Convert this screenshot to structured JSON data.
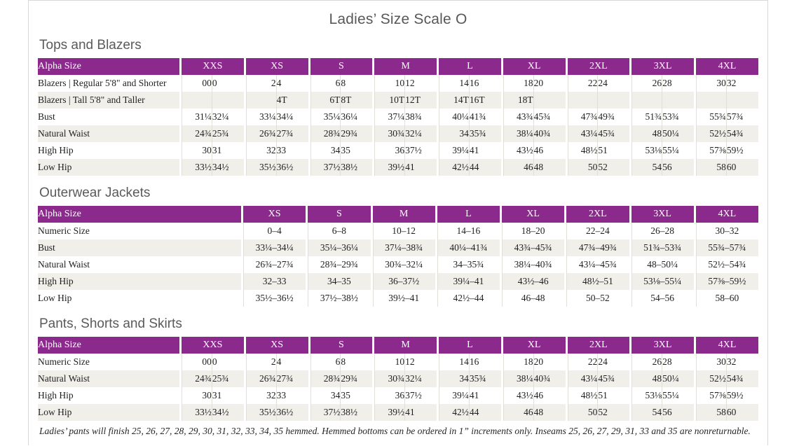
{
  "page": {
    "title": "Ladies’ Size Scale O",
    "footnote": "Ladies’ pants will finish 25, 26, 27, 28, 29, 30, 31, 32, 33, 34, 35 hemmed. Hemmed bottoms can be ordered in 1” increments only. Inseams 25, 26, 27, 29, 31, 33 and 35 are nonreturnable."
  },
  "colors": {
    "header_purple": "#8b2a8c",
    "row_stripe": "#f1efe9",
    "grid_line": "#e2dfd8",
    "heading_gray": "#5a5a5a",
    "page_border": "#d8d8d8"
  },
  "sections": [
    {
      "heading": "Tops and Blazers",
      "table": {
        "label_header": "Alpha Size",
        "group_headers": [
          "XXS",
          "XS",
          "S",
          "M",
          "L",
          "XL",
          "2XL",
          "3XL",
          "4XL"
        ],
        "cell_mode": "pairs",
        "label_col_width": 202,
        "rows": [
          {
            "label": "Blazers | Regular 5'8\" and Shorter",
            "cells": [
              [
                "00",
                "0"
              ],
              [
                "2",
                "4"
              ],
              [
                "6",
                "8"
              ],
              [
                "10",
                "12"
              ],
              [
                "14",
                "16"
              ],
              [
                "18",
                "20"
              ],
              [
                "22",
                "24"
              ],
              [
                "26",
                "28"
              ],
              [
                "30",
                "32"
              ]
            ]
          },
          {
            "label": "Blazers | Tall 5'8\" and Taller",
            "cells": [
              [
                "",
                ""
              ],
              [
                "",
                "4T"
              ],
              [
                "6T",
                "8T"
              ],
              [
                "10T",
                "12T"
              ],
              [
                "14T",
                "16T"
              ],
              [
                "18T",
                ""
              ],
              [
                "",
                ""
              ],
              [
                "",
                ""
              ],
              [
                "",
                ""
              ]
            ]
          },
          {
            "label": "Bust",
            "cells": [
              [
                "31¼",
                "32¼"
              ],
              [
                "33¼",
                "34¼"
              ],
              [
                "35¼",
                "36¼"
              ],
              [
                "37¼",
                "38¾"
              ],
              [
                "40¼",
                "41¾"
              ],
              [
                "43¾",
                "45¾"
              ],
              [
                "47¾",
                "49¾"
              ],
              [
                "51¾",
                "53¾"
              ],
              [
                "55¾",
                "57¾"
              ]
            ]
          },
          {
            "label": "Natural Waist",
            "cells": [
              [
                "24¾",
                "25¾"
              ],
              [
                "26¾",
                "27¾"
              ],
              [
                "28¾",
                "29¾"
              ],
              [
                "30¾",
                "32¼"
              ],
              [
                "34",
                "35¾"
              ],
              [
                "38¼",
                "40¾"
              ],
              [
                "43¼",
                "45¾"
              ],
              [
                "48",
                "50¼"
              ],
              [
                "52½",
                "54¾"
              ]
            ]
          },
          {
            "label": "High Hip",
            "cells": [
              [
                "30",
                "31"
              ],
              [
                "32",
                "33"
              ],
              [
                "34",
                "35"
              ],
              [
                "36",
                "37½"
              ],
              [
                "39¼",
                "41"
              ],
              [
                "43½",
                "46"
              ],
              [
                "48½",
                "51"
              ],
              [
                "53⅛",
                "55¼"
              ],
              [
                "57⅜",
                "59½"
              ]
            ]
          },
          {
            "label": "Low Hip",
            "cells": [
              [
                "33½",
                "34½"
              ],
              [
                "35½",
                "36½"
              ],
              [
                "37½",
                "38½"
              ],
              [
                "39½",
                "41"
              ],
              [
                "42½",
                "44"
              ],
              [
                "46",
                "48"
              ],
              [
                "50",
                "52"
              ],
              [
                "54",
                "56"
              ],
              [
                "58",
                "60"
              ]
            ]
          }
        ]
      }
    },
    {
      "heading": "Outerwear Jackets",
      "table": {
        "label_header": "Alpha Size",
        "group_headers": [
          "XS",
          "S",
          "M",
          "L",
          "XL",
          "2XL",
          "3XL",
          "4XL"
        ],
        "cell_mode": "single",
        "label_col_width": 290,
        "rows": [
          {
            "label": "Numeric Size",
            "cells": [
              "0–4",
              "6–8",
              "10–12",
              "14–16",
              "18–20",
              "22–24",
              "26–28",
              "30–32"
            ]
          },
          {
            "label": "Bust",
            "cells": [
              "33¼–34¼",
              "35¼–36¼",
              "37¼–38¾",
              "40¼–41¾",
              "43¾–45¾",
              "47¾–49¾",
              "51¾–53¾",
              "55¾–57¾"
            ]
          },
          {
            "label": "Natural Waist",
            "cells": [
              "26¾–27¾",
              "28¾–29¾",
              "30¾–32¼",
              "34–35¾",
              "38¼–40¾",
              "43¼–45¾",
              "48–50¼",
              "52½–54¾"
            ]
          },
          {
            "label": "High Hip",
            "cells": [
              "32–33",
              "34–35",
              "36–37½",
              "39¼–41",
              "43½–46",
              "48½–51",
              "53⅛–55¼",
              "57⅜–59½"
            ]
          },
          {
            "label": "Low Hip",
            "cells": [
              "35½–36½",
              "37½–38½",
              "39½–41",
              "42½–44",
              "46–48",
              "50–52",
              "54–56",
              "58–60"
            ]
          }
        ]
      }
    },
    {
      "heading": "Pants, Shorts and Skirts",
      "table": {
        "label_header": "Alpha Size",
        "group_headers": [
          "XXS",
          "XS",
          "S",
          "M",
          "L",
          "XL",
          "2XL",
          "3XL",
          "4XL"
        ],
        "cell_mode": "pairs",
        "label_col_width": 202,
        "rows": [
          {
            "label": "Numeric Size",
            "cells": [
              [
                "00",
                "0"
              ],
              [
                "2",
                "4"
              ],
              [
                "6",
                "8"
              ],
              [
                "10",
                "12"
              ],
              [
                "14",
                "16"
              ],
              [
                "18",
                "20"
              ],
              [
                "22",
                "24"
              ],
              [
                "26",
                "28"
              ],
              [
                "30",
                "32"
              ]
            ]
          },
          {
            "label": "Natural Waist",
            "cells": [
              [
                "24¾",
                "25¾"
              ],
              [
                "26¾",
                "27¾"
              ],
              [
                "28¾",
                "29¾"
              ],
              [
                "30¾",
                "32¼"
              ],
              [
                "34",
                "35¾"
              ],
              [
                "38¼",
                "40¾"
              ],
              [
                "43¼",
                "45¾"
              ],
              [
                "48",
                "50¼"
              ],
              [
                "52½",
                "54¾"
              ]
            ]
          },
          {
            "label": "High Hip",
            "cells": [
              [
                "30",
                "31"
              ],
              [
                "32",
                "33"
              ],
              [
                "34",
                "35"
              ],
              [
                "36",
                "37½"
              ],
              [
                "39¼",
                "41"
              ],
              [
                "43½",
                "46"
              ],
              [
                "48½",
                "51"
              ],
              [
                "53⅛",
                "55¼"
              ],
              [
                "57⅜",
                "59½"
              ]
            ]
          },
          {
            "label": "Low Hip",
            "cells": [
              [
                "33½",
                "34½"
              ],
              [
                "35½",
                "36½"
              ],
              [
                "37½",
                "38½"
              ],
              [
                "39½",
                "41"
              ],
              [
                "42½",
                "44"
              ],
              [
                "46",
                "48"
              ],
              [
                "50",
                "52"
              ],
              [
                "54",
                "56"
              ],
              [
                "58",
                "60"
              ]
            ]
          }
        ]
      }
    }
  ]
}
